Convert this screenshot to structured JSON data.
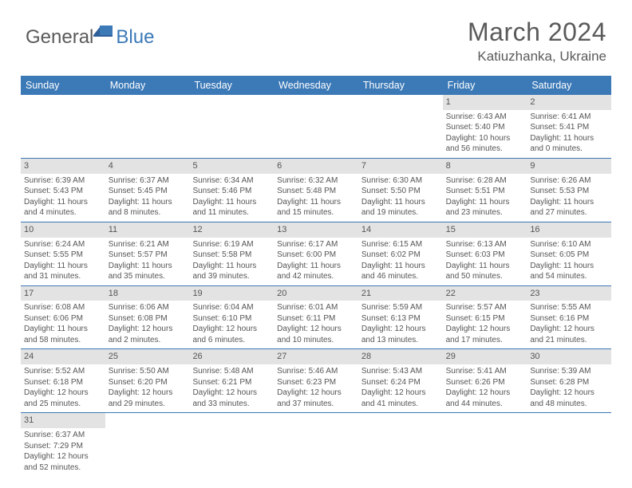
{
  "logo": {
    "general": "General",
    "blue": "Blue"
  },
  "title": "March 2024",
  "location": "Katiuzhanka, Ukraine",
  "colors": {
    "accent": "#3b79b7",
    "dayNumBg": "#e3e3e3",
    "text": "#5a5a5a"
  },
  "dayNames": [
    "Sunday",
    "Monday",
    "Tuesday",
    "Wednesday",
    "Thursday",
    "Friday",
    "Saturday"
  ],
  "weeks": [
    [
      {
        "n": "",
        "lines": []
      },
      {
        "n": "",
        "lines": []
      },
      {
        "n": "",
        "lines": []
      },
      {
        "n": "",
        "lines": []
      },
      {
        "n": "",
        "lines": []
      },
      {
        "n": "1",
        "lines": [
          "Sunrise: 6:43 AM",
          "Sunset: 5:40 PM",
          "Daylight: 10 hours and 56 minutes."
        ]
      },
      {
        "n": "2",
        "lines": [
          "Sunrise: 6:41 AM",
          "Sunset: 5:41 PM",
          "Daylight: 11 hours and 0 minutes."
        ]
      }
    ],
    [
      {
        "n": "3",
        "lines": [
          "Sunrise: 6:39 AM",
          "Sunset: 5:43 PM",
          "Daylight: 11 hours and 4 minutes."
        ]
      },
      {
        "n": "4",
        "lines": [
          "Sunrise: 6:37 AM",
          "Sunset: 5:45 PM",
          "Daylight: 11 hours and 8 minutes."
        ]
      },
      {
        "n": "5",
        "lines": [
          "Sunrise: 6:34 AM",
          "Sunset: 5:46 PM",
          "Daylight: 11 hours and 11 minutes."
        ]
      },
      {
        "n": "6",
        "lines": [
          "Sunrise: 6:32 AM",
          "Sunset: 5:48 PM",
          "Daylight: 11 hours and 15 minutes."
        ]
      },
      {
        "n": "7",
        "lines": [
          "Sunrise: 6:30 AM",
          "Sunset: 5:50 PM",
          "Daylight: 11 hours and 19 minutes."
        ]
      },
      {
        "n": "8",
        "lines": [
          "Sunrise: 6:28 AM",
          "Sunset: 5:51 PM",
          "Daylight: 11 hours and 23 minutes."
        ]
      },
      {
        "n": "9",
        "lines": [
          "Sunrise: 6:26 AM",
          "Sunset: 5:53 PM",
          "Daylight: 11 hours and 27 minutes."
        ]
      }
    ],
    [
      {
        "n": "10",
        "lines": [
          "Sunrise: 6:24 AM",
          "Sunset: 5:55 PM",
          "Daylight: 11 hours and 31 minutes."
        ]
      },
      {
        "n": "11",
        "lines": [
          "Sunrise: 6:21 AM",
          "Sunset: 5:57 PM",
          "Daylight: 11 hours and 35 minutes."
        ]
      },
      {
        "n": "12",
        "lines": [
          "Sunrise: 6:19 AM",
          "Sunset: 5:58 PM",
          "Daylight: 11 hours and 39 minutes."
        ]
      },
      {
        "n": "13",
        "lines": [
          "Sunrise: 6:17 AM",
          "Sunset: 6:00 PM",
          "Daylight: 11 hours and 42 minutes."
        ]
      },
      {
        "n": "14",
        "lines": [
          "Sunrise: 6:15 AM",
          "Sunset: 6:02 PM",
          "Daylight: 11 hours and 46 minutes."
        ]
      },
      {
        "n": "15",
        "lines": [
          "Sunrise: 6:13 AM",
          "Sunset: 6:03 PM",
          "Daylight: 11 hours and 50 minutes."
        ]
      },
      {
        "n": "16",
        "lines": [
          "Sunrise: 6:10 AM",
          "Sunset: 6:05 PM",
          "Daylight: 11 hours and 54 minutes."
        ]
      }
    ],
    [
      {
        "n": "17",
        "lines": [
          "Sunrise: 6:08 AM",
          "Sunset: 6:06 PM",
          "Daylight: 11 hours and 58 minutes."
        ]
      },
      {
        "n": "18",
        "lines": [
          "Sunrise: 6:06 AM",
          "Sunset: 6:08 PM",
          "Daylight: 12 hours and 2 minutes."
        ]
      },
      {
        "n": "19",
        "lines": [
          "Sunrise: 6:04 AM",
          "Sunset: 6:10 PM",
          "Daylight: 12 hours and 6 minutes."
        ]
      },
      {
        "n": "20",
        "lines": [
          "Sunrise: 6:01 AM",
          "Sunset: 6:11 PM",
          "Daylight: 12 hours and 10 minutes."
        ]
      },
      {
        "n": "21",
        "lines": [
          "Sunrise: 5:59 AM",
          "Sunset: 6:13 PM",
          "Daylight: 12 hours and 13 minutes."
        ]
      },
      {
        "n": "22",
        "lines": [
          "Sunrise: 5:57 AM",
          "Sunset: 6:15 PM",
          "Daylight: 12 hours and 17 minutes."
        ]
      },
      {
        "n": "23",
        "lines": [
          "Sunrise: 5:55 AM",
          "Sunset: 6:16 PM",
          "Daylight: 12 hours and 21 minutes."
        ]
      }
    ],
    [
      {
        "n": "24",
        "lines": [
          "Sunrise: 5:52 AM",
          "Sunset: 6:18 PM",
          "Daylight: 12 hours and 25 minutes."
        ]
      },
      {
        "n": "25",
        "lines": [
          "Sunrise: 5:50 AM",
          "Sunset: 6:20 PM",
          "Daylight: 12 hours and 29 minutes."
        ]
      },
      {
        "n": "26",
        "lines": [
          "Sunrise: 5:48 AM",
          "Sunset: 6:21 PM",
          "Daylight: 12 hours and 33 minutes."
        ]
      },
      {
        "n": "27",
        "lines": [
          "Sunrise: 5:46 AM",
          "Sunset: 6:23 PM",
          "Daylight: 12 hours and 37 minutes."
        ]
      },
      {
        "n": "28",
        "lines": [
          "Sunrise: 5:43 AM",
          "Sunset: 6:24 PM",
          "Daylight: 12 hours and 41 minutes."
        ]
      },
      {
        "n": "29",
        "lines": [
          "Sunrise: 5:41 AM",
          "Sunset: 6:26 PM",
          "Daylight: 12 hours and 44 minutes."
        ]
      },
      {
        "n": "30",
        "lines": [
          "Sunrise: 5:39 AM",
          "Sunset: 6:28 PM",
          "Daylight: 12 hours and 48 minutes."
        ]
      }
    ],
    [
      {
        "n": "31",
        "lines": [
          "Sunrise: 6:37 AM",
          "Sunset: 7:29 PM",
          "Daylight: 12 hours and 52 minutes."
        ]
      },
      {
        "n": "",
        "lines": []
      },
      {
        "n": "",
        "lines": []
      },
      {
        "n": "",
        "lines": []
      },
      {
        "n": "",
        "lines": []
      },
      {
        "n": "",
        "lines": []
      },
      {
        "n": "",
        "lines": []
      }
    ]
  ]
}
